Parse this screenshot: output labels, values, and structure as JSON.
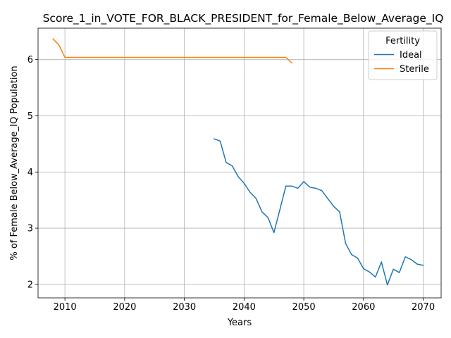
{
  "chart_data": {
    "type": "line",
    "title": "Score_1_in_VOTE_FOR_BLACK_PRESIDENT_for_Female_Below_Average_IQ",
    "xlabel": "Years",
    "ylabel": "% of Female Below_Average_IQ Population",
    "xlim": [
      2005.5,
      2073
    ],
    "ylim": [
      1.76,
      6.56
    ],
    "xticks": [
      2010,
      2020,
      2030,
      2040,
      2050,
      2060,
      2070
    ],
    "yticks": [
      2,
      3,
      4,
      5,
      6
    ],
    "grid": true,
    "legend": {
      "title": "Fertility",
      "placement": "top-right"
    },
    "series": [
      {
        "name": "Ideal",
        "color": "#1f77b4",
        "x": [
          2035,
          2036,
          2037,
          2038,
          2039,
          2040,
          2041,
          2042,
          2043,
          2044,
          2045,
          2046,
          2047,
          2048,
          2049,
          2050,
          2051,
          2052,
          2053,
          2054,
          2055,
          2056,
          2057,
          2058,
          2059,
          2060,
          2061,
          2062,
          2063,
          2064,
          2065,
          2066,
          2067,
          2068,
          2069,
          2070
        ],
        "values": [
          4.59,
          4.55,
          4.17,
          4.11,
          3.92,
          3.8,
          3.64,
          3.53,
          3.29,
          3.19,
          2.92,
          3.33,
          3.75,
          3.75,
          3.71,
          3.83,
          3.73,
          3.71,
          3.67,
          3.53,
          3.39,
          3.29,
          2.73,
          2.53,
          2.47,
          2.28,
          2.22,
          2.13,
          2.4,
          1.99,
          2.27,
          2.21,
          2.49,
          2.44,
          2.36,
          2.34
        ]
      },
      {
        "name": "Sterile",
        "color": "#ff7f0e",
        "x": [
          2008,
          2009,
          2010,
          2011,
          2012,
          2013,
          2014,
          2015,
          2016,
          2017,
          2018,
          2019,
          2020,
          2021,
          2022,
          2023,
          2024,
          2025,
          2026,
          2027,
          2028,
          2029,
          2030,
          2031,
          2032,
          2033,
          2034,
          2035,
          2036,
          2037,
          2038,
          2039,
          2040,
          2041,
          2042,
          2043,
          2044,
          2045,
          2046,
          2047,
          2048
        ],
        "values": [
          6.37,
          6.26,
          6.04,
          6.04,
          6.04,
          6.04,
          6.04,
          6.04,
          6.04,
          6.04,
          6.04,
          6.04,
          6.04,
          6.04,
          6.04,
          6.04,
          6.04,
          6.04,
          6.04,
          6.04,
          6.04,
          6.04,
          6.04,
          6.04,
          6.04,
          6.04,
          6.04,
          6.04,
          6.04,
          6.04,
          6.04,
          6.04,
          6.04,
          6.04,
          6.04,
          6.04,
          6.04,
          6.04,
          6.04,
          6.04,
          5.94
        ]
      }
    ]
  }
}
